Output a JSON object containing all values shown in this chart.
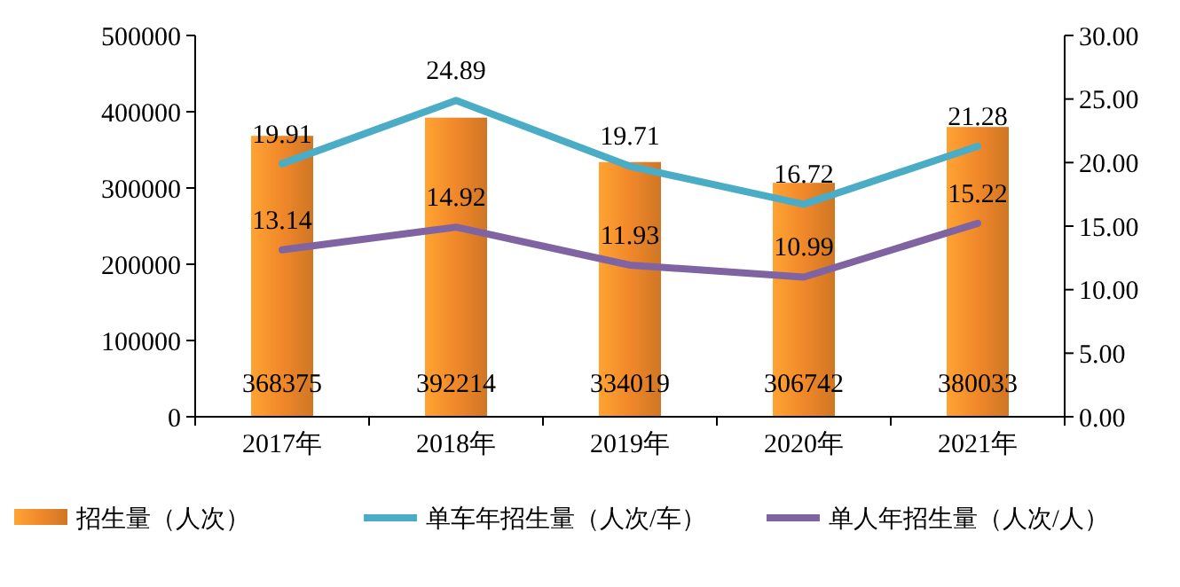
{
  "chart_data": {
    "type": "bar",
    "categories": [
      "2017年",
      "2018年",
      "2019年",
      "2020年",
      "2021年"
    ],
    "series": [
      {
        "name": "招生量（人次）",
        "color": "#f0882a",
        "values": [
          368375,
          392214,
          334019,
          306742,
          380033
        ]
      },
      {
        "name": "单车年招生量（人次/车）",
        "type": "line",
        "axis": "y2",
        "color": "#4bacc6",
        "values": [
          19.91,
          24.89,
          19.71,
          16.72,
          21.28
        ]
      },
      {
        "name": "单人年招生量（人次/人）",
        "type": "line",
        "axis": "y2",
        "color": "#8064a2",
        "values": [
          13.14,
          14.92,
          11.93,
          10.99,
          15.22
        ]
      }
    ],
    "ylim": [
      0,
      500000
    ],
    "yticks": [
      0,
      100000,
      200000,
      300000,
      400000,
      500000
    ],
    "y2lim": [
      0,
      30
    ],
    "y2ticks": [
      {
        "value": 0,
        "label": "0.00"
      },
      {
        "value": 5,
        "label": "5.00"
      },
      {
        "value": 10,
        "label": "10.00"
      },
      {
        "value": 15,
        "label": "15.00"
      },
      {
        "value": 20,
        "label": "20.00"
      },
      {
        "value": 25,
        "label": "25.00"
      },
      {
        "value": 30,
        "label": "30.00"
      }
    ],
    "data_labels": true,
    "legend": "bottom",
    "grid": false,
    "marker": "none",
    "line_style": "solid"
  }
}
